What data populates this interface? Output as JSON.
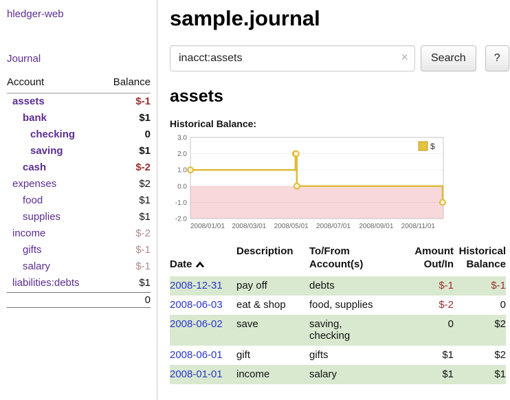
{
  "colors": {
    "purple": "#5c2d91",
    "blue": "#2b35cc",
    "negative": "#9e2f2f",
    "negative_muted": "#b28a8a",
    "shade": "#d9e9d0"
  },
  "app": {
    "brand": "hledger-web"
  },
  "sidebar": {
    "journal_link": "Journal",
    "headers": {
      "account": "Account",
      "balance": "Balance"
    },
    "accounts": [
      {
        "name": "assets",
        "indent": 0,
        "bold": true,
        "balance": "$-1"
      },
      {
        "name": "bank",
        "indent": 1,
        "bold": true,
        "balance": "$1"
      },
      {
        "name": "checking",
        "indent": 2,
        "bold": true,
        "balance": "0"
      },
      {
        "name": "saving",
        "indent": 2,
        "bold": true,
        "balance": "$1"
      },
      {
        "name": "cash",
        "indent": 1,
        "bold": true,
        "balance": "$-2"
      },
      {
        "name": "expenses",
        "indent": 0,
        "bold": false,
        "balance": "$2"
      },
      {
        "name": "food",
        "indent": 1,
        "bold": false,
        "balance": "$1"
      },
      {
        "name": "supplies",
        "indent": 1,
        "bold": false,
        "balance": "$1"
      },
      {
        "name": "income",
        "indent": 0,
        "bold": false,
        "balance": "$-2"
      },
      {
        "name": "gifts",
        "indent": 1,
        "bold": false,
        "balance": "$-1"
      },
      {
        "name": "salary",
        "indent": 1,
        "bold": false,
        "balance": "$-1"
      },
      {
        "name": "liabilities:debts",
        "indent": 0,
        "bold": false,
        "balance": "$1"
      }
    ],
    "total": "0"
  },
  "main": {
    "title": "sample.journal",
    "search": {
      "value": "inacct:assets",
      "clear_icon": "×",
      "button": "Search",
      "help_button": "?"
    },
    "account_heading": "assets",
    "chart_label": "Historical Balance:"
  },
  "chart_data": {
    "type": "line",
    "style": "step-after",
    "title": "Historical Balance",
    "series": [
      {
        "name": "$",
        "x": [
          "2008-01-01",
          "2008-06-01",
          "2008-06-02",
          "2008-06-03",
          "2008-12-31"
        ],
        "values": [
          1,
          2,
          2,
          0,
          -1
        ]
      }
    ],
    "xlim": [
      "2008-01-01",
      "2009-01-01"
    ],
    "ylim": [
      -2,
      3
    ],
    "y_ticks": [
      "3.0",
      "2.0",
      "1.0",
      "0.0",
      "-1.0",
      "-2.0"
    ],
    "x_tick_dates": [
      "2008-01-01",
      "2008-03-01",
      "2008-05-01",
      "2008-07-01",
      "2008-09-01",
      "2008-11-01"
    ],
    "x_tick_labels": [
      "2008/01/01",
      "2008/03/01",
      "2008/05/01",
      "2008/07/01",
      "2008/09/01",
      "2008/11/01"
    ],
    "legend": {
      "label": "$",
      "position": "top-right",
      "color": "#e6c33d"
    },
    "line_color": "#dfbb3a",
    "marker_fill": "#fdf4d7",
    "negative_region_fill": "#f8d8da",
    "grid": true
  },
  "register": {
    "headers": {
      "date": "Date",
      "sort": "ascending",
      "description": "Description",
      "account": "To/From\nAccount(s)",
      "amount": "Amount\nOut/In",
      "balance": "Historical\nBalance"
    },
    "rows": [
      {
        "date": "2008-12-31",
        "description": "pay off",
        "accounts": "debts",
        "amount": "$-1",
        "balance": "$-1"
      },
      {
        "date": "2008-06-03",
        "description": "eat & shop",
        "accounts": "food, supplies",
        "amount": "$-2",
        "balance": "0"
      },
      {
        "date": "2008-06-02",
        "description": "save",
        "accounts": "saving,\nchecking",
        "amount": "0",
        "balance": "$2"
      },
      {
        "date": "2008-06-01",
        "description": "gift",
        "accounts": "gifts",
        "amount": "$1",
        "balance": "$2"
      },
      {
        "date": "2008-01-01",
        "description": "income",
        "accounts": "salary",
        "amount": "$1",
        "balance": "$1"
      }
    ]
  }
}
